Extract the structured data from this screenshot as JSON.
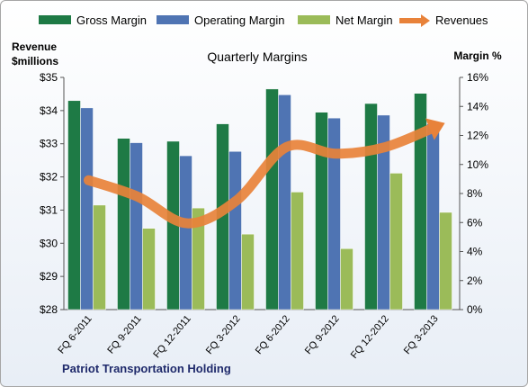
{
  "chart_data": {
    "type": "bar",
    "title": "Quarterly Margins",
    "company": "Patriot Transportation  Holding",
    "left_axis": {
      "title_line1": "Revenue",
      "title_line2": "$millions",
      "min": 28,
      "max": 35,
      "ticks": [
        "$28",
        "$29",
        "$30",
        "$31",
        "$32",
        "$33",
        "$34",
        "$35"
      ]
    },
    "right_axis": {
      "title": "Margin  %",
      "min": 0,
      "max": 16,
      "ticks": [
        "0%",
        "2%",
        "4%",
        "6%",
        "8%",
        "10%",
        "12%",
        "14%",
        "16%"
      ]
    },
    "categories": [
      "FQ 6-2011",
      "FQ 9-2011",
      "FQ 12-2011",
      "FQ 3-2012",
      "FQ 6-2012",
      "FQ 9-2012",
      "FQ 12-2012",
      "FQ 3-2013"
    ],
    "series": [
      {
        "name": "Gross Margin",
        "axis": "right",
        "color": "#1e7a45",
        "values": [
          14.4,
          11.8,
          11.6,
          12.8,
          15.2,
          13.6,
          14.2,
          14.9
        ]
      },
      {
        "name": "Operating Margin",
        "axis": "right",
        "color": "#4f74b3",
        "values": [
          13.9,
          11.5,
          10.6,
          10.9,
          14.8,
          13.2,
          13.4,
          12.8
        ]
      },
      {
        "name": "Net Margin",
        "axis": "right",
        "color": "#9bbb59",
        "values": [
          7.2,
          5.6,
          7.0,
          5.2,
          8.1,
          4.2,
          9.4,
          6.7
        ]
      },
      {
        "name": "Revenues",
        "axis": "left",
        "color": "#e8823a",
        "type": "line",
        "values": [
          31.9,
          31.4,
          30.6,
          31.3,
          32.9,
          32.7,
          32.9,
          33.5
        ]
      }
    ],
    "grid": false,
    "legend_position": "top"
  }
}
